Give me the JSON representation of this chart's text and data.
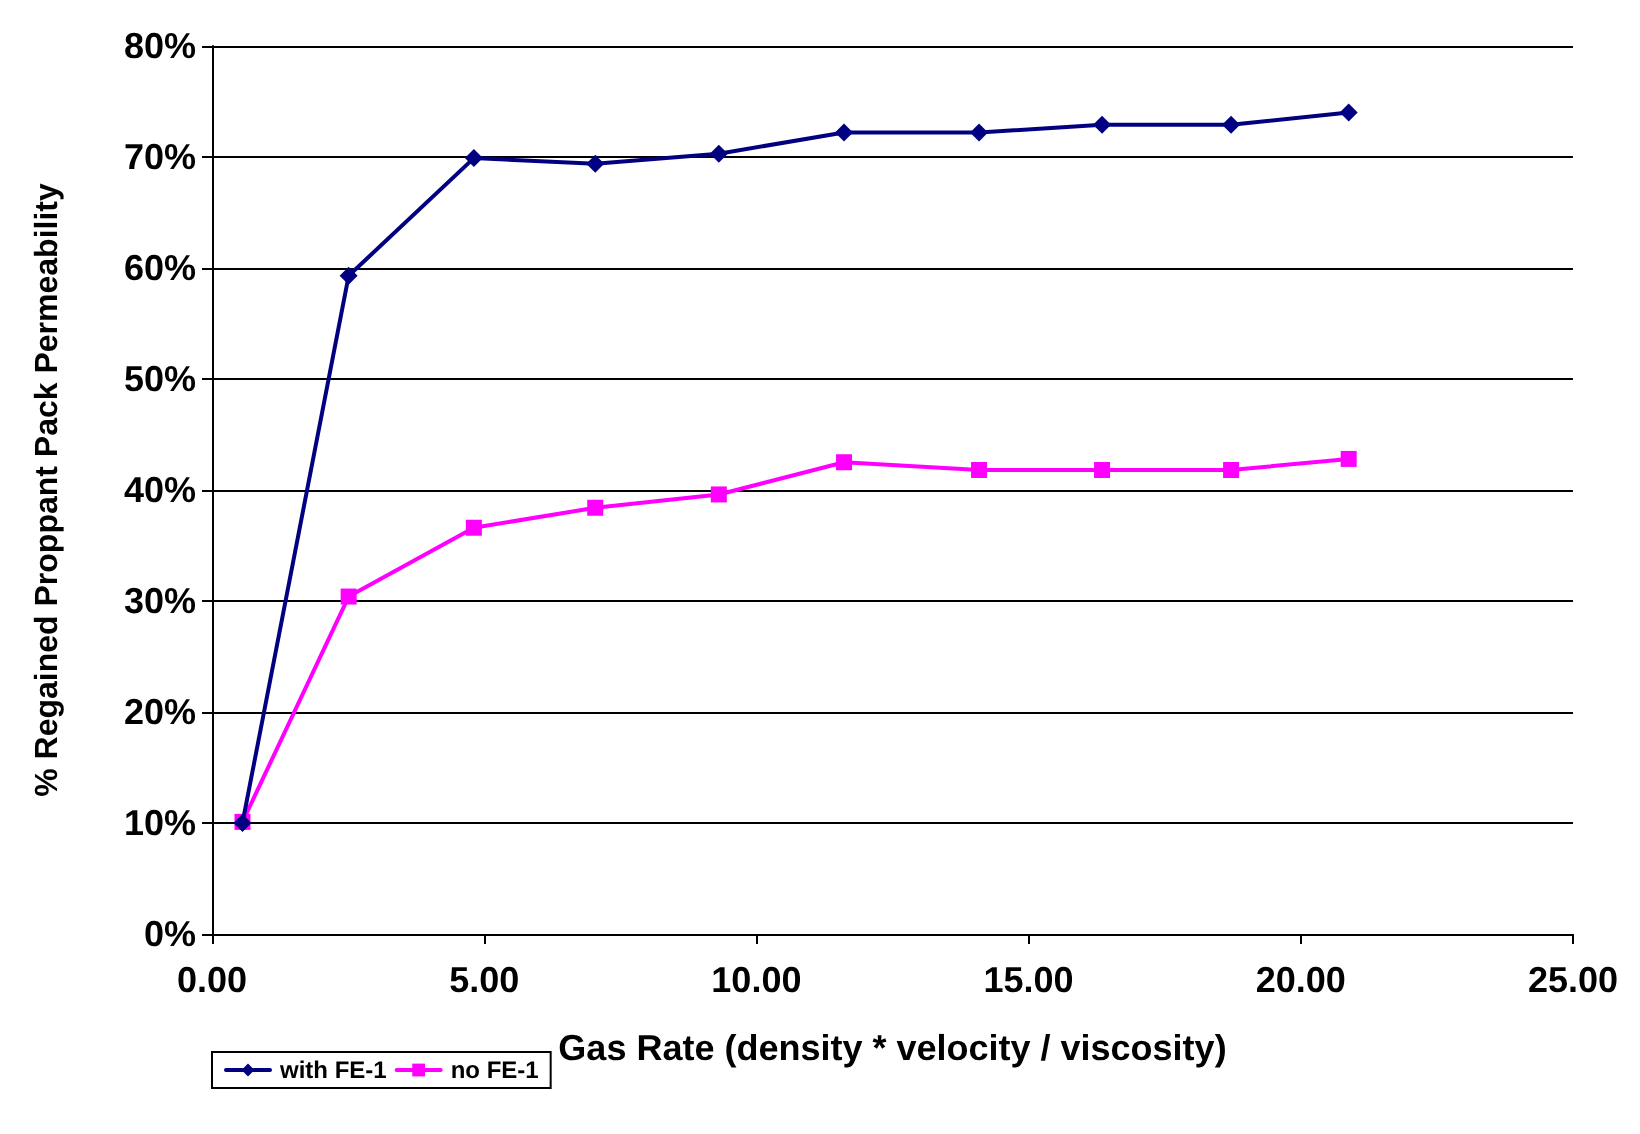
{
  "chart_data": {
    "type": "line",
    "xlabel": "Gas Rate (density * velocity / viscosity)",
    "ylabel": "% Regained Proppant Pack Permeability",
    "x": [
      0.56,
      2.51,
      4.81,
      7.04,
      9.31,
      11.61,
      14.09,
      16.35,
      18.72,
      20.88
    ],
    "series": [
      {
        "name": "with FE-1",
        "color": "#000080",
        "marker": "diamond",
        "values": [
          10,
          59.3,
          69.9,
          69.4,
          70.3,
          72.2,
          72.2,
          72.9,
          72.9,
          74.0
        ]
      },
      {
        "name": "no FE-1",
        "color": "#ff00ff",
        "marker": "square",
        "values": [
          10.1,
          30.4,
          36.6,
          38.4,
          39.6,
          42.5,
          41.8,
          41.8,
          41.8,
          42.8
        ]
      }
    ],
    "xlim": [
      0,
      25
    ],
    "xticks": [
      {
        "value": 0,
        "label": "0.00"
      },
      {
        "value": 5,
        "label": "5.00"
      },
      {
        "value": 10,
        "label": "10.00"
      },
      {
        "value": 15,
        "label": "15.00"
      },
      {
        "value": 20,
        "label": "20.00"
      },
      {
        "value": 25,
        "label": "25.00"
      }
    ],
    "ylim": [
      0,
      80
    ],
    "yticks": [
      {
        "value": 0,
        "label": "0%"
      },
      {
        "value": 10,
        "label": "10%"
      },
      {
        "value": 20,
        "label": "20%"
      },
      {
        "value": 30,
        "label": "30%"
      },
      {
        "value": 40,
        "label": "40%"
      },
      {
        "value": 50,
        "label": "50%"
      },
      {
        "value": 60,
        "label": "60%"
      },
      {
        "value": 70,
        "label": "70%"
      },
      {
        "value": 80,
        "label": "80%"
      }
    ],
    "grid": "y",
    "legend": "bottom left",
    "line_style": "solid"
  }
}
